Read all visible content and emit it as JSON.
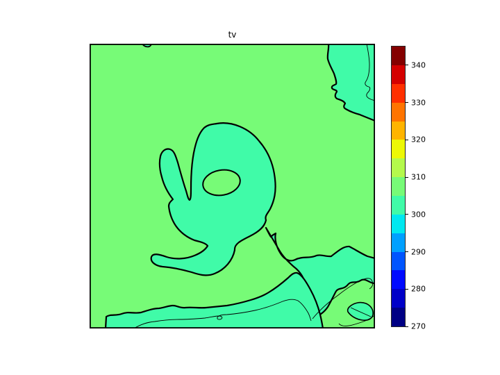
{
  "title": "tv",
  "figure": {
    "background_color": "#ffffff"
  },
  "map": {
    "background_color": "#77FB77",
    "region_color": "#40FBA8",
    "contour_color": "#000000"
  },
  "colorbar": {
    "min": 270,
    "max": 345,
    "tick_values": [
      270,
      280,
      290,
      300,
      310,
      320,
      330,
      340
    ],
    "tick_labels": [
      "270",
      "280",
      "290",
      "300",
      "310",
      "320",
      "330",
      "340"
    ],
    "segment_colors_bottom_to_top": [
      "#000084",
      "#0000C8",
      "#000AFF",
      "#0055FF",
      "#00A0FF",
      "#00E8F0",
      "#40FBA8",
      "#77FB77",
      "#B4F94C",
      "#EDF805",
      "#FFB400",
      "#FF7400",
      "#FF3000",
      "#D40000",
      "#840000"
    ]
  },
  "chart_data": {
    "type": "contour",
    "title": "tv",
    "colormap": "jet",
    "value_range": [
      270,
      345
    ],
    "contour_level_step": 5,
    "levels": [
      270,
      275,
      280,
      285,
      290,
      295,
      300,
      305,
      310,
      315,
      320,
      325,
      330,
      335,
      340,
      345
    ],
    "colorbar_ticks": [
      270,
      280,
      290,
      300,
      310,
      320,
      330,
      340
    ],
    "visible_fill_levels": {
      "background_fill": [
        305,
        310
      ],
      "outlined_regions_fill": [
        300,
        305
      ]
    },
    "visible_features": [
      "central cyclone-shaped region with hooked arm and inner eye of higher values",
      "region covering upper-right corner",
      "diagonal band in lower-right reaching right edge",
      "band along bottom edge rising toward lower-right",
      "small oval region near bottom-right corner",
      "tiny notch on top edge left of title"
    ],
    "axes": {
      "x_ticks": [],
      "y_ticks": [],
      "frame": true
    }
  }
}
